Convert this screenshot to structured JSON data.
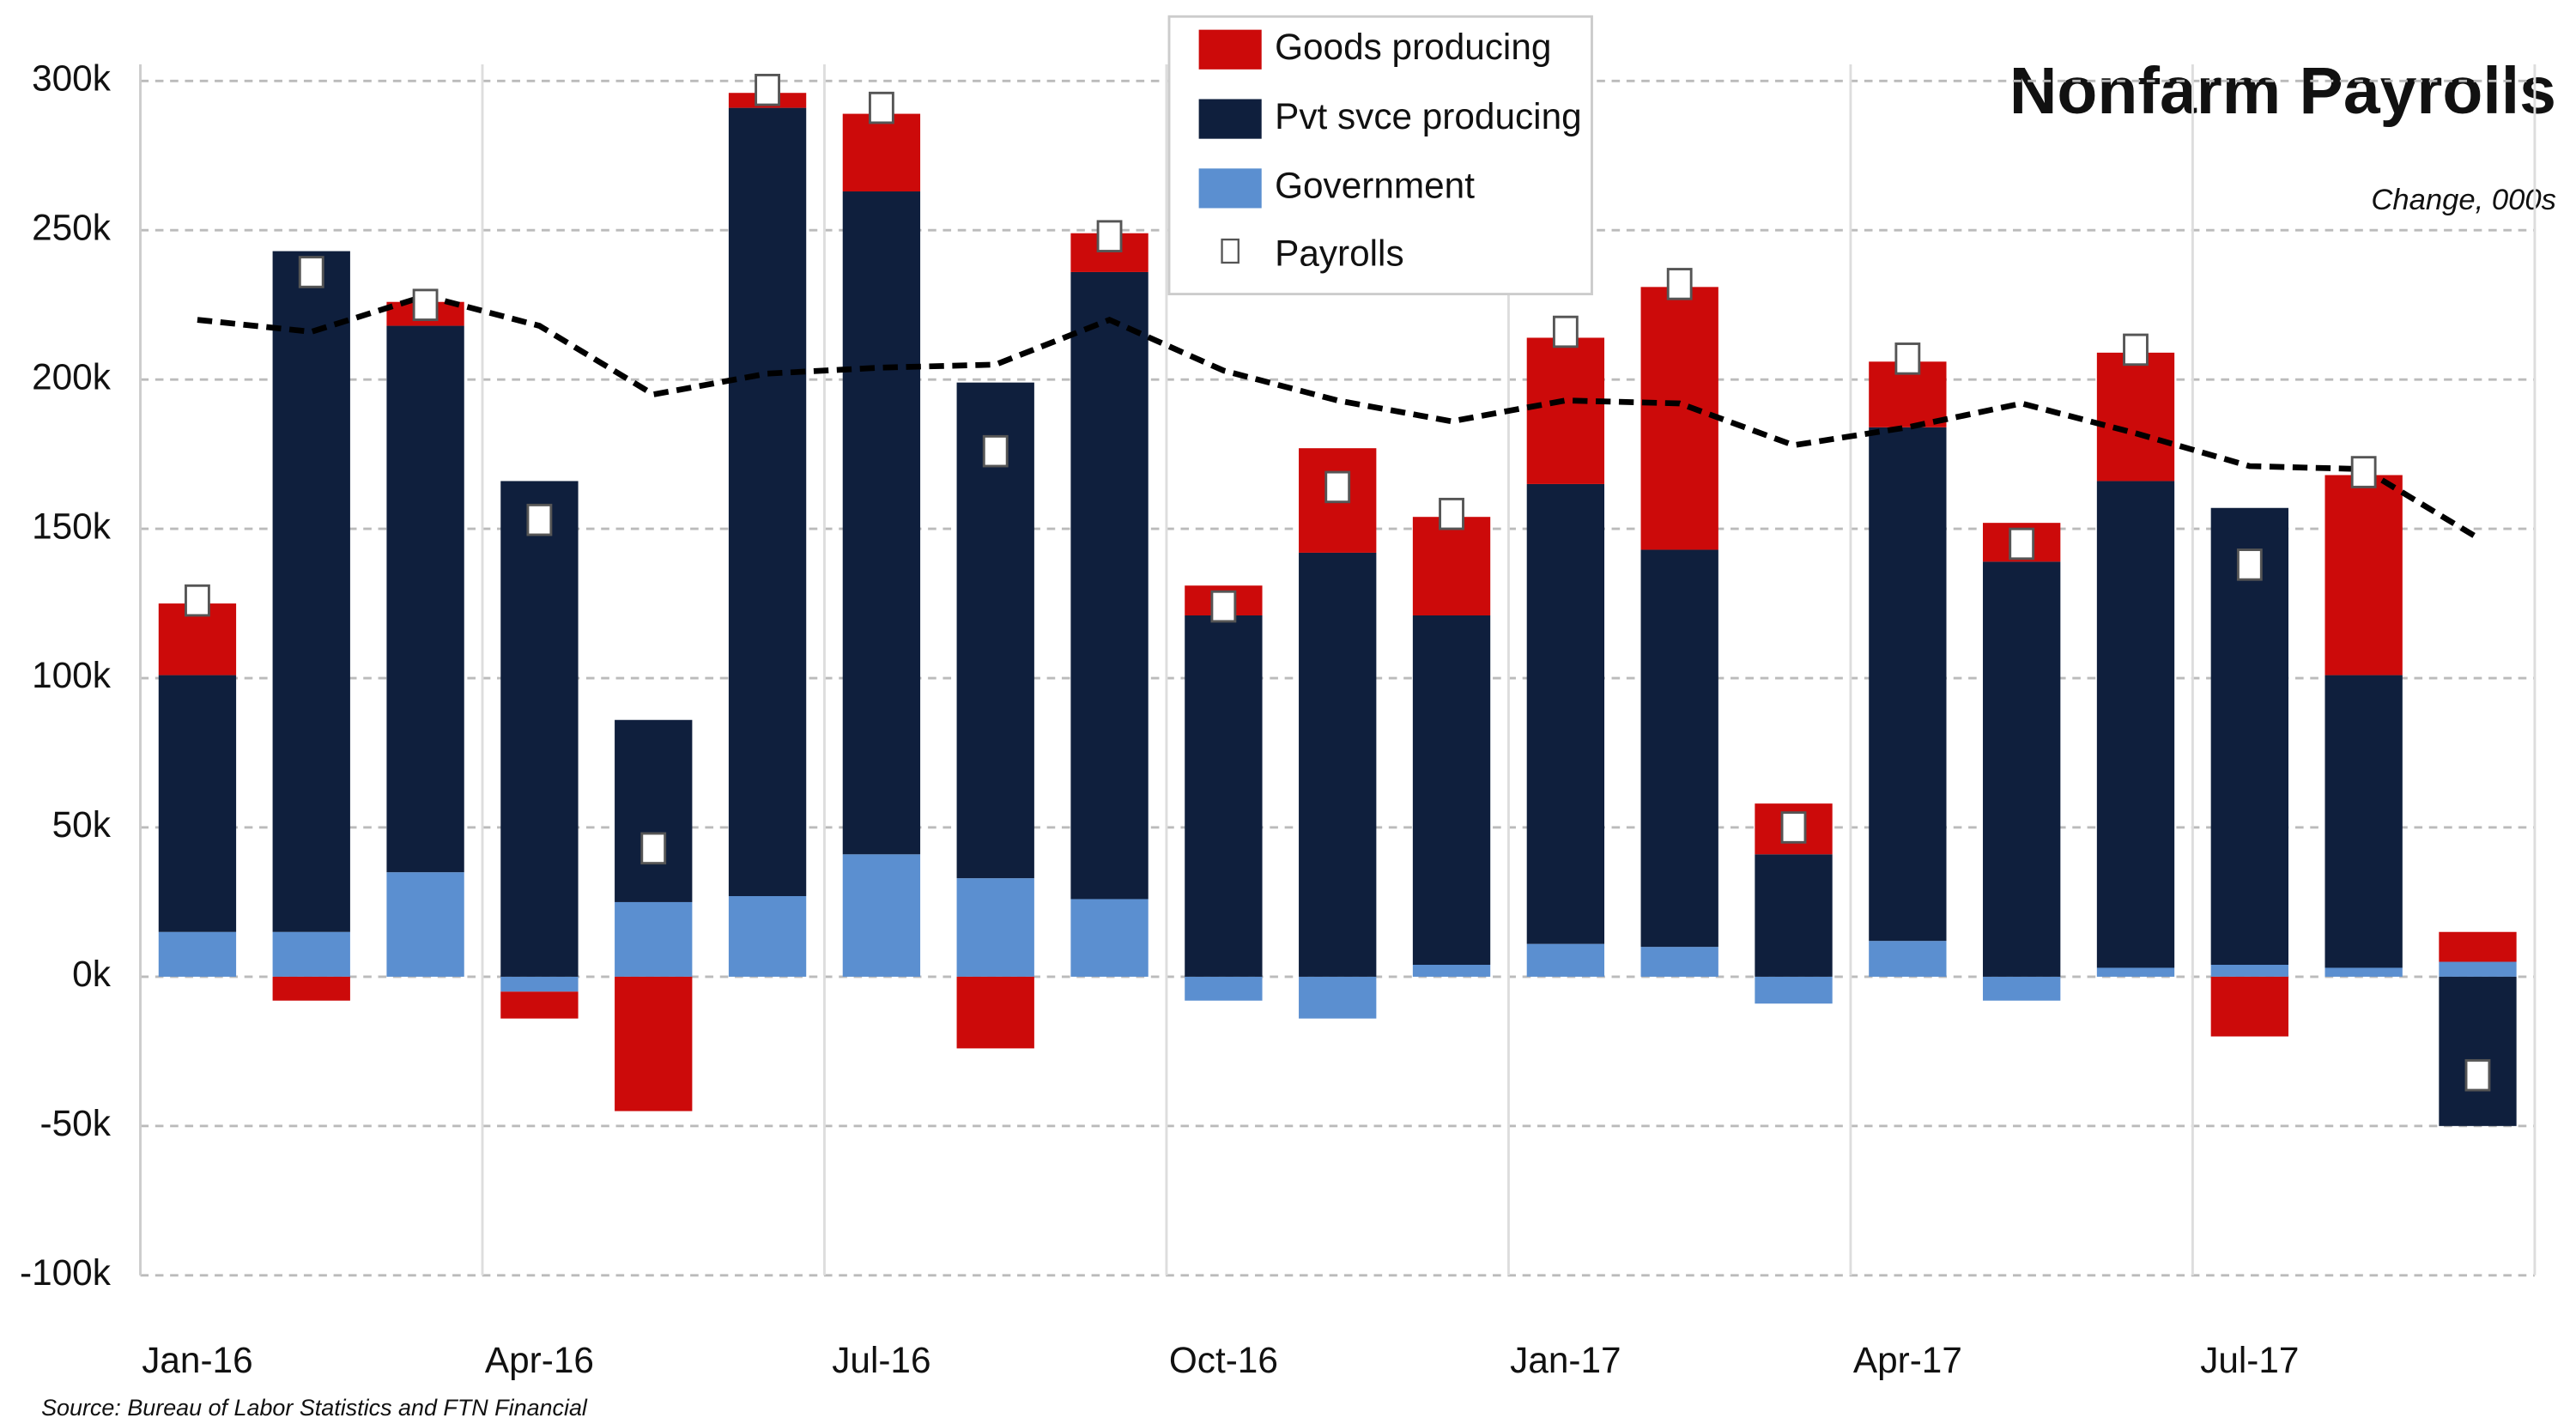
{
  "chart_data": {
    "type": "stacked_bar",
    "title": "Nonfarm Payrolls",
    "subtitle": "Change, 000s",
    "source": "Source: Bureau of Labor Statistics and FTN Financial",
    "categories": [
      "Jan-16",
      null,
      null,
      "Apr-16",
      null,
      null,
      "Jul-16",
      null,
      null,
      "Oct-16",
      null,
      null,
      "Jan-17",
      null,
      null,
      "Apr-17",
      null,
      null,
      "Jul-17",
      null,
      null
    ],
    "series": [
      {
        "name": "Goods producing",
        "color": "#cc0a0a",
        "values": [
          24,
          -8,
          8,
          -9,
          -45,
          5,
          26,
          -24,
          13,
          10,
          35,
          33,
          49,
          88,
          17,
          22,
          13,
          43,
          -20,
          67,
          10
        ]
      },
      {
        "name": "Pvt svce producing",
        "color": "#0f1f3d",
        "values": [
          86,
          228,
          183,
          166,
          61,
          264,
          222,
          166,
          210,
          121,
          142,
          117,
          154,
          133,
          41,
          172,
          139,
          163,
          153,
          98,
          -50
        ]
      },
      {
        "name": "Government",
        "color": "#5b8fd0",
        "values": [
          15,
          15,
          35,
          -5,
          25,
          27,
          41,
          33,
          26,
          -8,
          -14,
          4,
          11,
          10,
          -9,
          12,
          -8,
          3,
          4,
          3,
          5
        ]
      }
    ],
    "markers": {
      "name": "Payrolls",
      "color": "#ffffff",
      "values": [
        126,
        236,
        225,
        153,
        43,
        297,
        291,
        176,
        248,
        124,
        164,
        155,
        216,
        232,
        50,
        207,
        145,
        210,
        138,
        169,
        -33
      ]
    },
    "trend": {
      "color": "#000000",
      "values": [
        220,
        216,
        228,
        218,
        195,
        202,
        204,
        205,
        220,
        203,
        193,
        186,
        193,
        192,
        178,
        184,
        192,
        182,
        171,
        170,
        147
      ]
    },
    "ylim": [
      -100,
      300
    ],
    "yticks": [
      {
        "value": -100,
        "label": "-100k"
      },
      {
        "value": -50,
        "label": "-50k"
      },
      {
        "value": 0,
        "label": "0k"
      },
      {
        "value": 50,
        "label": "50k"
      },
      {
        "value": 100,
        "label": "100k"
      },
      {
        "value": 150,
        "label": "150k"
      },
      {
        "value": 200,
        "label": "200k"
      },
      {
        "value": 250,
        "label": "250k"
      },
      {
        "value": 300,
        "label": "300k"
      }
    ],
    "grid": true,
    "legend": "top"
  }
}
